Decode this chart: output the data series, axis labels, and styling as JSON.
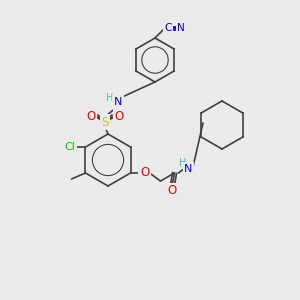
{
  "bg_color": "#ebebeb",
  "bond_color": "#404040",
  "atom_colors": {
    "N": "#0000ff",
    "O": "#ff0000",
    "S": "#cccc00",
    "Cl": "#00cc00",
    "CN_C": "#0000cd",
    "CN_N": "#0000cd",
    "H": "#4db8b8"
  },
  "font_size": 7.5,
  "bond_width": 1.2
}
